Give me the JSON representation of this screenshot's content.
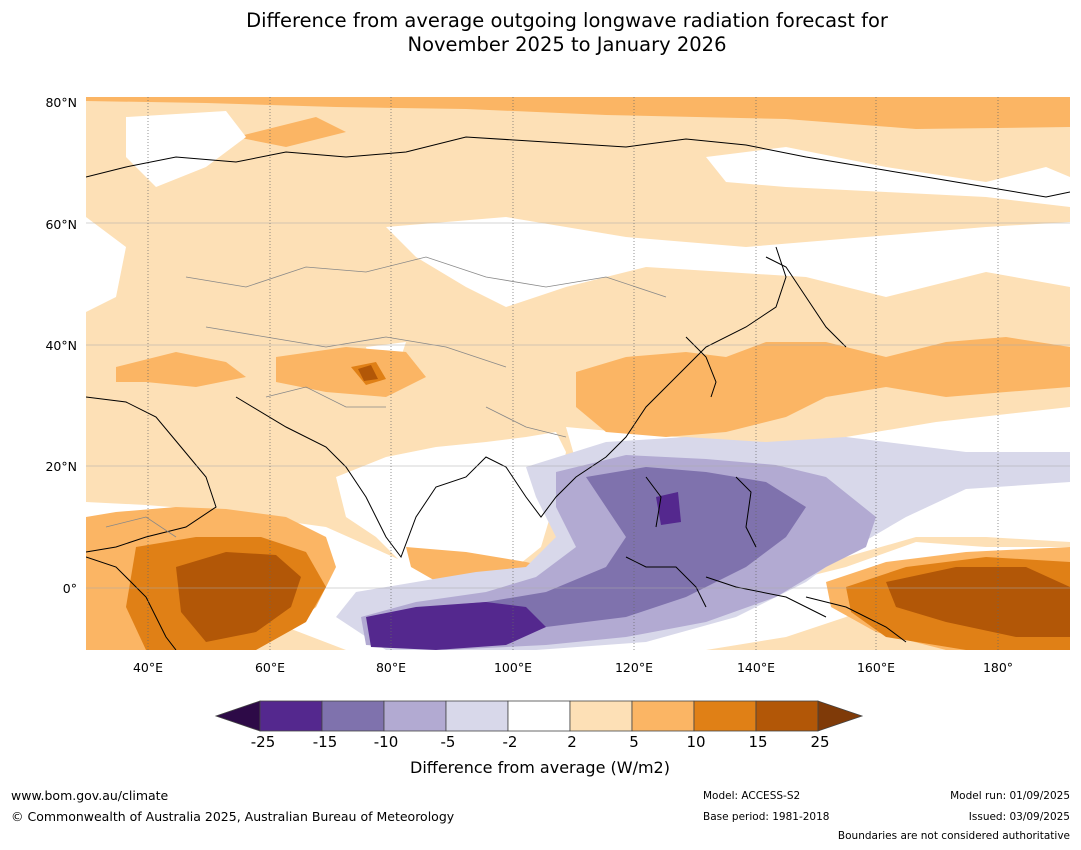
{
  "title": {
    "line1": "Difference from average outgoing longwave radiation forecast for",
    "line2": "November 2025 to January 2026"
  },
  "map": {
    "lat_labels": [
      "80°N",
      "60°N",
      "40°N",
      "20°N",
      "0°"
    ],
    "lon_labels": [
      "40°E",
      "60°E",
      "80°E",
      "100°E",
      "120°E",
      "140°E",
      "160°E",
      "180°"
    ]
  },
  "legend": {
    "ticks": [
      "-25",
      "-15",
      "-10",
      "-5",
      "-2",
      "2",
      "5",
      "10",
      "15",
      "25"
    ],
    "colors": {
      "below_min": "#2d0a47",
      "bins": [
        "#54288e",
        "#7f72ad",
        "#b2aad2",
        "#d8d8ea",
        "#ffffff",
        "#fde0b6",
        "#fbb564",
        "#e08016",
        "#b25707"
      ],
      "above_max": "#7f3a08"
    },
    "label": "Difference from average (W/m2)"
  },
  "footer": {
    "website": "www.bom.gov.au/climate",
    "copyright": "© Commonwealth of Australia 2025, Australian Bureau of Meteorology",
    "model": "Model: ACCESS-S2",
    "base_period": "Base period: 1981-2018",
    "model_run": "Model run: 01/09/2025",
    "issued": "Issued: 03/09/2025",
    "disclaimer": "Boundaries are not considered authoritative"
  }
}
